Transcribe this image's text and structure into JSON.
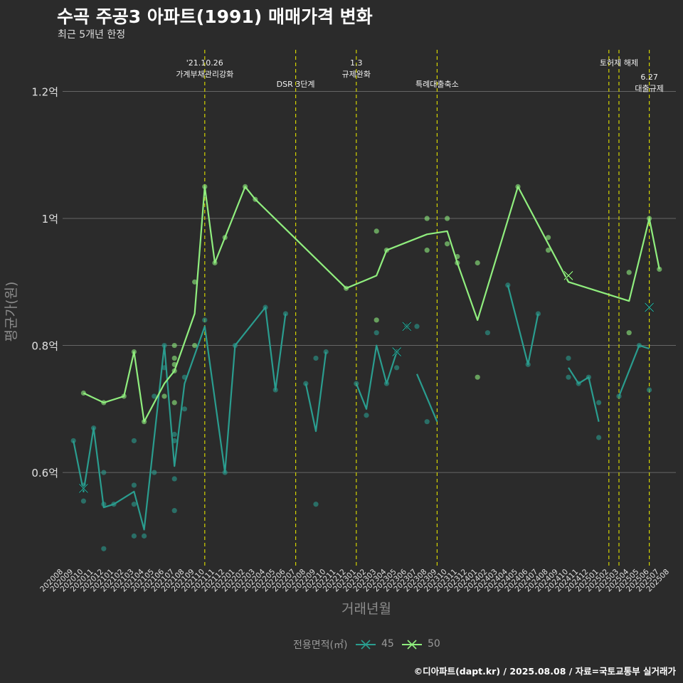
{
  "header": {
    "title": "수곡 주공3 아파트(1991) 매매가격 변화",
    "subtitle": "최근 5개년 한정"
  },
  "caption": "©디아파트(dapt.kr) / 2025.08.08 / 자료=국토교통부 실거래가",
  "legend": {
    "title": "전용면적(㎡)",
    "items": [
      {
        "label": "45",
        "color": "#2a9d8f"
      },
      {
        "label": "50",
        "color": "#90ee7e"
      }
    ]
  },
  "colors": {
    "background": "#2b2b2b",
    "grid": "#666666",
    "event_line": "#d4d400",
    "series_45": "#2a9d8f",
    "series_50": "#90ee7e"
  },
  "chart_data": {
    "type": "line",
    "xlabel": "거래년월",
    "ylabel": "평균가(원)",
    "ylim": [
      0.45,
      1.27
    ],
    "y_unit": "억",
    "y_ticks": [
      {
        "value": 0.6,
        "label": "0.6억"
      },
      {
        "value": 0.8,
        "label": "0.8억"
      },
      {
        "value": 1.0,
        "label": "1억"
      },
      {
        "value": 1.2,
        "label": "1.2억"
      }
    ],
    "x_categories": [
      "202008",
      "202009",
      "202010",
      "202011",
      "202012",
      "202101",
      "202102",
      "202103",
      "202104",
      "202105",
      "202106",
      "202107",
      "202108",
      "202109",
      "202110",
      "202111",
      "202112",
      "202201",
      "202202",
      "202203",
      "202204",
      "202205",
      "202206",
      "202207",
      "202208",
      "202209",
      "202210",
      "202211",
      "202212",
      "202301",
      "202302",
      "202303",
      "202304",
      "202305",
      "202306",
      "202307",
      "202308",
      "202309",
      "202310",
      "202311",
      "202312",
      "202401",
      "202402",
      "202403",
      "202404",
      "202405",
      "202406",
      "202407",
      "202408",
      "202409",
      "202410",
      "202411",
      "202412",
      "202501",
      "202502",
      "202503",
      "202504",
      "202505",
      "202506",
      "202507",
      "202508"
    ],
    "events": [
      {
        "x": "202110",
        "label": "'21.10.26\n가계부채관리강화",
        "row": 0
      },
      {
        "x": "202207",
        "label": "DSR 3단계",
        "row": 1
      },
      {
        "x": "202301",
        "label": "1.3\n규제완화",
        "row": 0
      },
      {
        "x": "202309",
        "label": "특례대출축소",
        "row": 1
      },
      {
        "x": "202502",
        "label": "",
        "row": 0
      },
      {
        "x": "202503",
        "label": "토허제 해제",
        "row": 0
      },
      {
        "x": "202506",
        "label": "6.27\n대출규제",
        "row": 2
      }
    ],
    "series": [
      {
        "name": "45",
        "color": "#2a9d8f",
        "line_segments": [
          [
            [
              "202009",
              0.65
            ],
            [
              "202010",
              0.57
            ],
            [
              "202011",
              0.67
            ],
            [
              "202012",
              0.545
            ],
            [
              "202101",
              0.55
            ],
            [
              "202103",
              0.57
            ],
            [
              "202104",
              0.51
            ],
            [
              "202106",
              0.8
            ],
            [
              "202107",
              0.61
            ],
            [
              "202108",
              0.74
            ],
            [
              "202110",
              0.83
            ],
            [
              "202112",
              0.6
            ],
            [
              "202201",
              0.8
            ],
            [
              "202204",
              0.86
            ],
            [
              "202205",
              0.73
            ],
            [
              "202206",
              0.85
            ]
          ],
          [
            [
              "202208",
              0.74
            ],
            [
              "202209",
              0.665
            ],
            [
              "202210",
              0.79
            ]
          ],
          [
            [
              "202301",
              0.74
            ],
            [
              "202302",
              0.7
            ],
            [
              "202303",
              0.8
            ],
            [
              "202304",
              0.74
            ],
            [
              "202305",
              0.79
            ]
          ],
          [
            [
              "202307",
              0.755
            ],
            [
              "202309",
              0.68
            ]
          ],
          [
            [
              "202404",
              0.895
            ],
            [
              "202406",
              0.77
            ],
            [
              "202407",
              0.85
            ]
          ],
          [
            [
              "202410",
              0.765
            ],
            [
              "202411",
              0.74
            ],
            [
              "202412",
              0.75
            ],
            [
              "202501",
              0.68
            ]
          ],
          [
            [
              "202503",
              0.72
            ],
            [
              "202505",
              0.8
            ],
            [
              "202506",
              0.795
            ]
          ]
        ],
        "points": [
          [
            "202009",
            0.65
          ],
          [
            "202010",
            0.58
          ],
          [
            "202010",
            0.555
          ],
          [
            "202011",
            0.67
          ],
          [
            "202012",
            0.6
          ],
          [
            "202012",
            0.55
          ],
          [
            "202012",
            0.48
          ],
          [
            "202101",
            0.55
          ],
          [
            "202103",
            0.65
          ],
          [
            "202103",
            0.58
          ],
          [
            "202103",
            0.55
          ],
          [
            "202103",
            0.5
          ],
          [
            "202104",
            0.5
          ],
          [
            "202105",
            0.6
          ],
          [
            "202105",
            0.72
          ],
          [
            "202106",
            0.765
          ],
          [
            "202106",
            0.8
          ],
          [
            "202107",
            0.66
          ],
          [
            "202107",
            0.65
          ],
          [
            "202107",
            0.59
          ],
          [
            "202107",
            0.54
          ],
          [
            "202108",
            0.75
          ],
          [
            "202108",
            0.7
          ],
          [
            "202110",
            0.84
          ],
          [
            "202112",
            0.6
          ],
          [
            "202201",
            0.8
          ],
          [
            "202204",
            0.86
          ],
          [
            "202205",
            0.73
          ],
          [
            "202206",
            0.85
          ],
          [
            "202208",
            0.74
          ],
          [
            "202209",
            0.78
          ],
          [
            "202209",
            0.55
          ],
          [
            "202210",
            0.79
          ],
          [
            "202301",
            0.74
          ],
          [
            "202302",
            0.69
          ],
          [
            "202303",
            0.82
          ],
          [
            "202304",
            0.74
          ],
          [
            "202305",
            0.765
          ],
          [
            "202305",
            0.79
          ],
          [
            "202306",
            0.83
          ],
          [
            "202307",
            0.83
          ],
          [
            "202308",
            0.68
          ],
          [
            "202402",
            0.82
          ],
          [
            "202404",
            0.895
          ],
          [
            "202406",
            0.77
          ],
          [
            "202407",
            0.85
          ],
          [
            "202410",
            0.78
          ],
          [
            "202410",
            0.75
          ],
          [
            "202411",
            0.74
          ],
          [
            "202412",
            0.75
          ],
          [
            "202501",
            0.71
          ],
          [
            "202501",
            0.655
          ],
          [
            "202503",
            0.72
          ],
          [
            "202505",
            0.8
          ],
          [
            "202506",
            0.73
          ]
        ],
        "x_markers": [
          [
            "202010",
            0.575
          ],
          [
            "202305",
            0.79
          ],
          [
            "202306",
            0.83
          ],
          [
            "202506",
            0.86
          ]
        ]
      },
      {
        "name": "50",
        "color": "#90ee7e",
        "line_segments": [
          [
            [
              "202010",
              0.725
            ],
            [
              "202012",
              0.71
            ],
            [
              "202102",
              0.72
            ],
            [
              "202103",
              0.79
            ],
            [
              "202104",
              0.68
            ],
            [
              "202106",
              0.74
            ],
            [
              "202107",
              0.76
            ],
            [
              "202109",
              0.85
            ],
            [
              "202110",
              1.05
            ],
            [
              "202111",
              0.93
            ],
            [
              "202202",
              1.05
            ],
            [
              "202203",
              1.03
            ],
            [
              "202212",
              0.89
            ],
            [
              "202303",
              0.91
            ],
            [
              "202304",
              0.95
            ],
            [
              "202308",
              0.975
            ],
            [
              "202310",
              0.98
            ],
            [
              "202311",
              0.93
            ],
            [
              "202401",
              0.84
            ],
            [
              "202405",
              1.05
            ],
            [
              "202410",
              0.9
            ],
            [
              "202504",
              0.87
            ],
            [
              "202506",
              1.0
            ],
            [
              "202507",
              0.92
            ]
          ]
        ],
        "points": [
          [
            "202010",
            0.725
          ],
          [
            "202012",
            0.71
          ],
          [
            "202102",
            0.72
          ],
          [
            "202103",
            0.79
          ],
          [
            "202104",
            0.68
          ],
          [
            "202106",
            0.72
          ],
          [
            "202107",
            0.8
          ],
          [
            "202107",
            0.78
          ],
          [
            "202107",
            0.77
          ],
          [
            "202107",
            0.76
          ],
          [
            "202107",
            0.71
          ],
          [
            "202109",
            0.9
          ],
          [
            "202109",
            0.8
          ],
          [
            "202110",
            1.05
          ],
          [
            "202111",
            0.93
          ],
          [
            "202112",
            0.97
          ],
          [
            "202202",
            1.05
          ],
          [
            "202203",
            1.03
          ],
          [
            "202212",
            0.89
          ],
          [
            "202303",
            0.98
          ],
          [
            "202303",
            0.84
          ],
          [
            "202304",
            0.95
          ],
          [
            "202308",
            1.0
          ],
          [
            "202308",
            0.95
          ],
          [
            "202310",
            1.0
          ],
          [
            "202310",
            0.96
          ],
          [
            "202311",
            0.94
          ],
          [
            "202311",
            0.93
          ],
          [
            "202401",
            0.93
          ],
          [
            "202401",
            0.75
          ],
          [
            "202405",
            1.05
          ],
          [
            "202408",
            0.97
          ],
          [
            "202408",
            0.95
          ],
          [
            "202504",
            0.915
          ],
          [
            "202504",
            0.82
          ],
          [
            "202506",
            1.0
          ],
          [
            "202507",
            0.92
          ]
        ],
        "x_markers": [
          [
            "202410",
            0.91
          ]
        ]
      }
    ]
  }
}
